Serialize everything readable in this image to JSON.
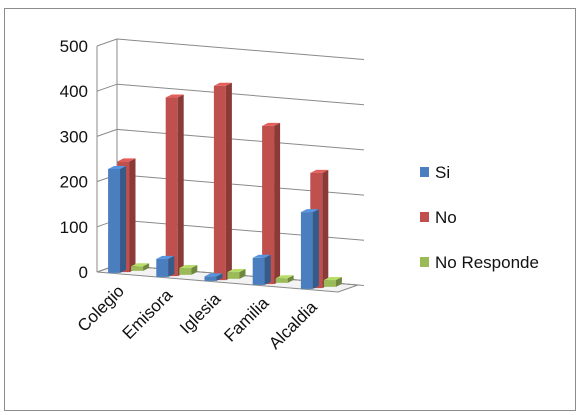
{
  "chart_data": {
    "type": "bar",
    "categories": [
      "Colegio",
      "Emisora",
      "Iglesia",
      "Familia",
      "Alcaldia"
    ],
    "series": [
      {
        "name": "Si",
        "color": "#4a7ebf",
        "values": [
          230,
          40,
          10,
          60,
          170
        ]
      },
      {
        "name": "No",
        "color": "#c0504d",
        "values": [
          245,
          395,
          430,
          350,
          255
        ]
      },
      {
        "name": "No Responde",
        "color": "#9bbb59",
        "values": [
          10,
          15,
          15,
          10,
          15
        ]
      }
    ],
    "y_ticks": [
      "0",
      "100",
      "200",
      "300",
      "400",
      "500"
    ],
    "ylim": [
      0,
      500
    ],
    "legend_position": "right",
    "style": "3d-clustered-column",
    "grid": true
  }
}
